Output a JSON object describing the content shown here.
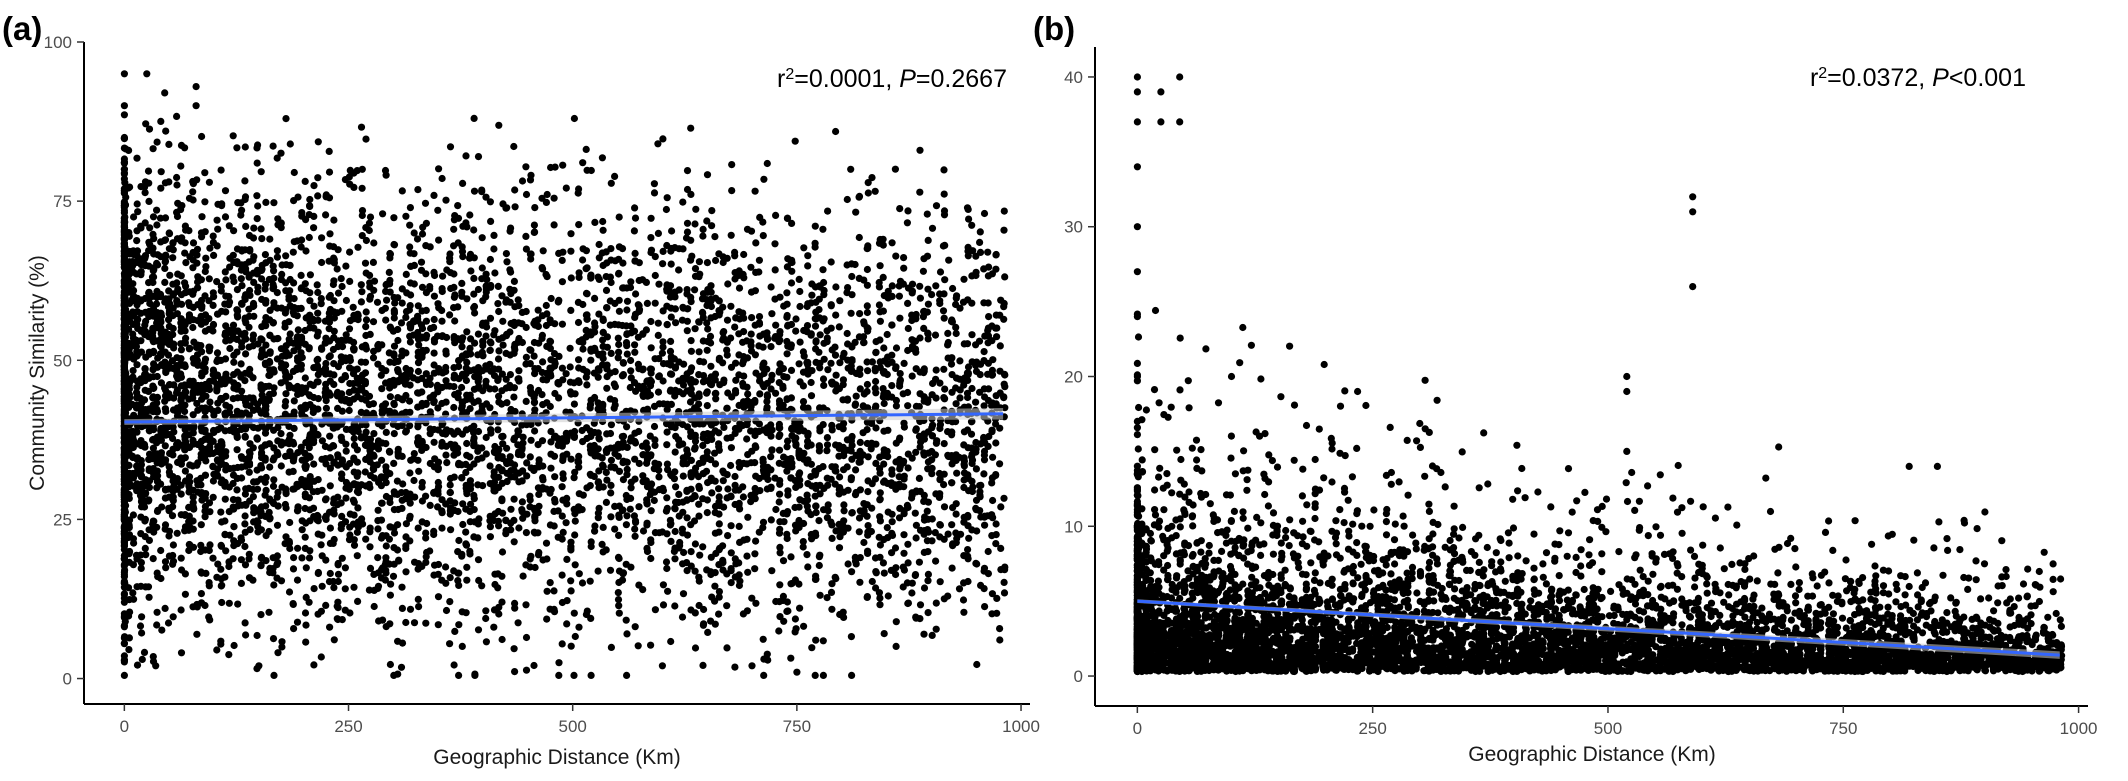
{
  "chart_data": [
    {
      "type": "scatter",
      "panel_label": "(a)",
      "title": "",
      "xlabel": "Geographic Distance (Km)",
      "ylabel": "Community Similarity (%)",
      "xlim": [
        -45,
        1010
      ],
      "ylim": [
        -4,
        100
      ],
      "xticks": [
        "0",
        "250",
        "500",
        "750",
        "1000"
      ],
      "yticks": [
        "0",
        "25",
        "50",
        "75",
        "100"
      ],
      "annotation": {
        "r2_prefix": "r",
        "r2_sup": "2",
        "r2_value": "=0.0001, ",
        "p_label": "P",
        "p_value": "=0.2667"
      },
      "fit_line": {
        "x": [
          0,
          980
        ],
        "y": [
          40.3,
          41.6
        ],
        "color": "#3366ff",
        "band_color": "#cccccc"
      },
      "point_color": "#000000",
      "scatter_model": {
        "n_points": 6200,
        "x_max": 985,
        "y_min": 0.5,
        "y_max": 96,
        "y_center_start": 45,
        "y_center_end": 40,
        "spread": 24
      },
      "x": [
        0,
        0,
        0,
        0,
        0,
        25,
        45,
        80,
        80,
        390,
        395,
        595,
        810,
        20,
        35,
        150,
        600,
        700,
        750
      ],
      "y": [
        95,
        90,
        85,
        80,
        70,
        95,
        92,
        93,
        90,
        88,
        82,
        84,
        80,
        3,
        2,
        2,
        2,
        2,
        1
      ]
    },
    {
      "type": "scatter",
      "panel_label": "(b)",
      "title": "",
      "xlabel": "Geographic Distance (Km)",
      "ylabel": "",
      "xlim": [
        -45,
        1010
      ],
      "ylim": [
        -2,
        42
      ],
      "xticks": [
        "0",
        "250",
        "500",
        "750",
        "1000"
      ],
      "yticks": [
        "0",
        "10",
        "20",
        "30",
        "40"
      ],
      "annotation": {
        "r2_prefix": "r",
        "r2_sup": "2",
        "r2_value": "=0.0372, ",
        "p_label": "P",
        "p_value": "<0.001"
      },
      "fit_line": {
        "x": [
          0,
          980
        ],
        "y": [
          5.0,
          1.4
        ],
        "color": "#3366ff",
        "band_color": "#cccccc"
      },
      "point_color": "#000000",
      "scatter_model": {
        "n_points": 6200,
        "x_max": 985,
        "y_min": 0.3,
        "y_max": 40,
        "y_center_start": 5,
        "y_center_end": 2,
        "spread": 3.2
      },
      "x": [
        0,
        0,
        0,
        0,
        0,
        0,
        0,
        0,
        0,
        25,
        25,
        45,
        45,
        590,
        590,
        590,
        520,
        520,
        520,
        100,
        820,
        850
      ],
      "y": [
        40,
        39,
        37,
        34,
        30,
        27,
        24,
        20,
        17,
        39,
        37,
        40,
        37,
        32,
        31,
        26,
        20,
        19,
        15,
        20,
        14,
        14
      ]
    }
  ]
}
